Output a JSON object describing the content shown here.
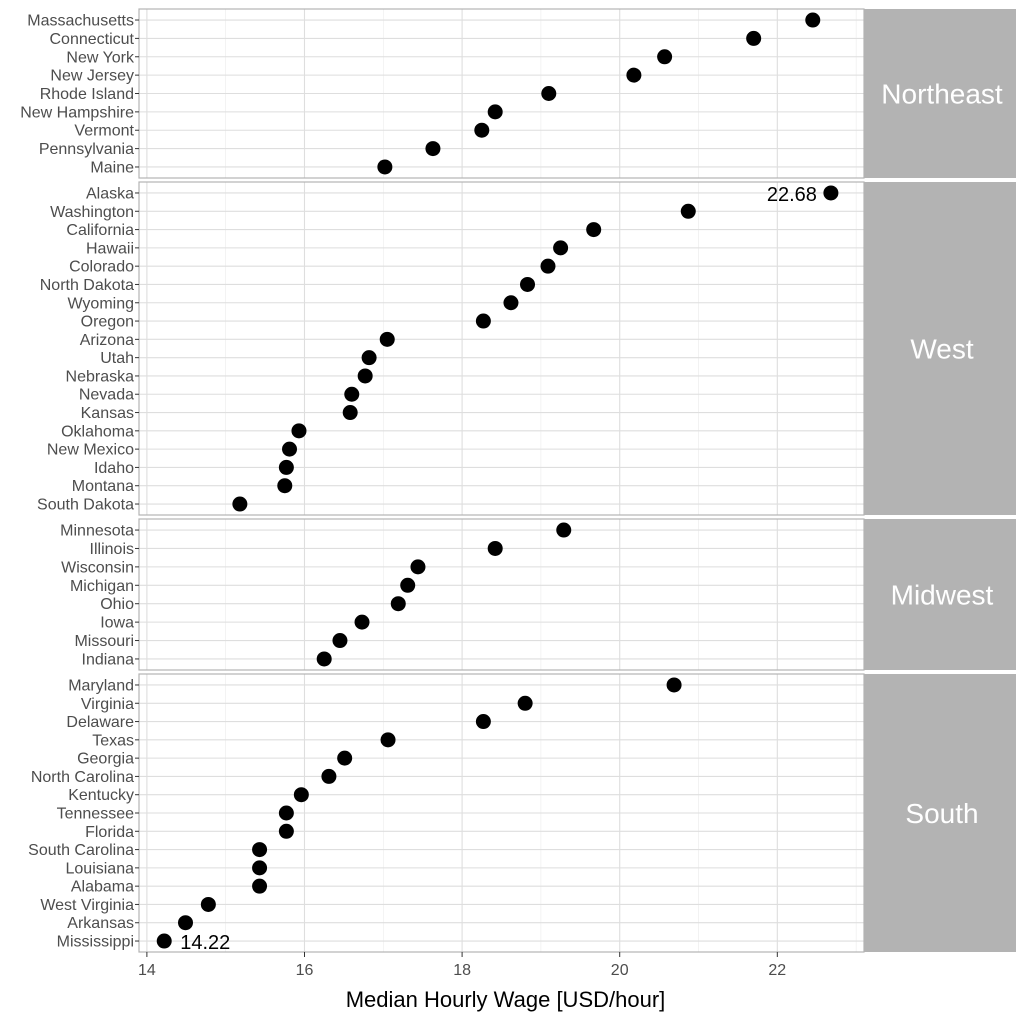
{
  "chart_data": {
    "type": "scatter",
    "xlabel": "Median Hourly Wage [USD/hour]",
    "xlim": [
      13.9,
      23.1
    ],
    "xticks": [
      14,
      16,
      18,
      20,
      22
    ],
    "grid": true,
    "panels": [
      {
        "region": "Northeast",
        "states": [
          "Massachusetts",
          "Connecticut",
          "New York",
          "New Jersey",
          "Rhode Island",
          "New Hampshire",
          "Vermont",
          "Pennsylvania",
          "Maine"
        ],
        "values": [
          22.45,
          21.7,
          20.57,
          20.18,
          19.1,
          18.42,
          18.25,
          17.63,
          17.02
        ]
      },
      {
        "region": "West",
        "states": [
          "Alaska",
          "Washington",
          "California",
          "Hawaii",
          "Colorado",
          "North Dakota",
          "Wyoming",
          "Oregon",
          "Arizona",
          "Utah",
          "Nebraska",
          "Nevada",
          "Kansas",
          "Oklahoma",
          "New Mexico",
          "Idaho",
          "Montana",
          "South Dakota"
        ],
        "values": [
          22.68,
          20.87,
          19.67,
          19.25,
          19.09,
          18.83,
          18.62,
          18.27,
          17.05,
          16.82,
          16.77,
          16.6,
          16.58,
          15.93,
          15.81,
          15.77,
          15.75,
          15.18
        ]
      },
      {
        "region": "Midwest",
        "states": [
          "Minnesota",
          "Illinois",
          "Wisconsin",
          "Michigan",
          "Ohio",
          "Iowa",
          "Missouri",
          "Indiana"
        ],
        "values": [
          19.29,
          18.42,
          17.44,
          17.31,
          17.19,
          16.73,
          16.45,
          16.25
        ]
      },
      {
        "region": "South",
        "states": [
          "Maryland",
          "Virginia",
          "Delaware",
          "Texas",
          "Georgia",
          "North Carolina",
          "Kentucky",
          "Tennessee",
          "Florida",
          "South Carolina",
          "Louisiana",
          "Alabama",
          "West Virginia",
          "Arkansas",
          "Mississippi"
        ],
        "values": [
          20.69,
          18.8,
          18.27,
          17.06,
          16.51,
          16.31,
          15.96,
          15.77,
          15.77,
          15.43,
          15.43,
          15.43,
          14.78,
          14.49,
          14.22
        ]
      }
    ],
    "annotations": [
      {
        "text": "22.68",
        "state": "Alaska",
        "side": "left"
      },
      {
        "text": "14.22",
        "state": "Mississippi",
        "side": "right"
      }
    ]
  }
}
